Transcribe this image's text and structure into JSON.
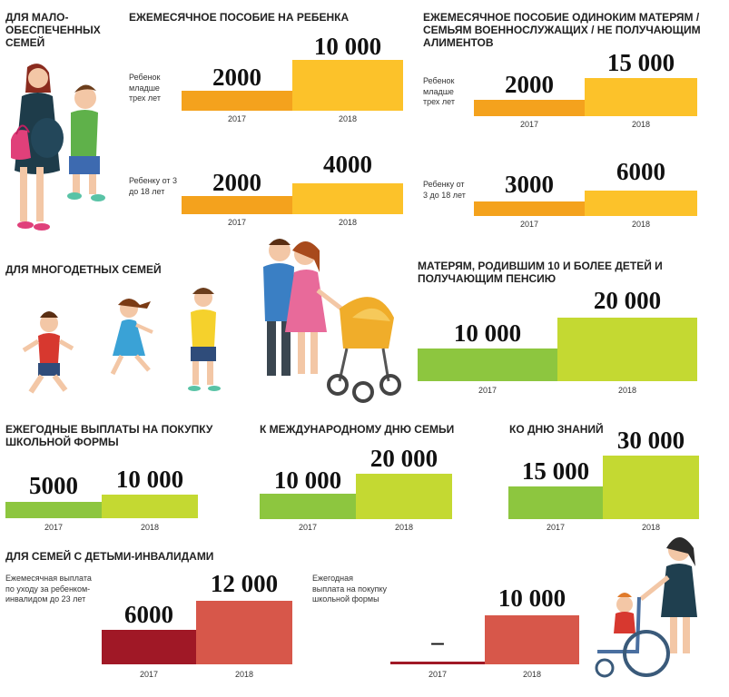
{
  "sections": {
    "low_income": {
      "title": "ДЛЯ МАЛО-ОБЕСПЕЧЕННЫХ СЕМЕЙ",
      "child_benefit": {
        "title": "ЕЖЕМЕСЯЧНОЕ ПОСОБИЕ НА РЕБЕНКА",
        "row1": {
          "label": "Ребенок младше трех лет",
          "v2017": "2000",
          "v2018": "10 000"
        },
        "row2": {
          "label": "Ребенку от 3 до 18 лет",
          "v2017": "2000",
          "v2018": "4000"
        }
      },
      "single_mothers": {
        "title": "ЕЖЕМЕСЯЧНОЕ ПОСОБИЕ ОДИНОКИМ МАТЕРЯМ / СЕМЬЯМ ВОЕННОСЛУЖАЩИХ / НЕ ПОЛУЧАЮЩИМ АЛИМЕНТОВ",
        "row1": {
          "label": "Ребенок младше трех лет",
          "v2017": "2000",
          "v2018": "15 000"
        },
        "row2": {
          "label": "Ребенку от 3 до 18 лет",
          "v2017": "3000",
          "v2018": "6000"
        }
      }
    },
    "large_families": {
      "title": "ДЛЯ МНОГОДЕТНЫХ СЕМЕЙ",
      "mothers10": {
        "title": "МАТЕРЯМ, РОДИВШИМ 10 И БОЛЕЕ ДЕТЕЙ И ПОЛУЧАЮЩИМ ПЕНСИЮ",
        "v2017": "10 000",
        "v2018": "20 000"
      },
      "school_uniform": {
        "title": "ЕЖЕГОДНЫЕ ВЫПЛАТЫ НА ПОКУПКУ ШКОЛЬНОЙ ФОРМЫ",
        "v2017": "5000",
        "v2018": "10 000"
      },
      "family_day": {
        "title": "К МЕЖДУНАРОДНОМУ ДНЮ СЕМЬИ",
        "v2017": "10 000",
        "v2018": "20 000"
      },
      "knowledge_day": {
        "title": "КО ДНЮ ЗНАНИЙ",
        "v2017": "15 000",
        "v2018": "30 000"
      }
    },
    "disabled": {
      "title": "ДЛЯ СЕМЕЙ С ДЕТЬМИ-ИНВАЛИДАМИ",
      "care": {
        "label": "Ежемесячная выплата по уходу за ребенком-инвалидом до 23 лет",
        "v2017": "6000",
        "v2018": "12 000"
      },
      "uniform": {
        "label": "Ежегодная выплата на покупку школьной формы",
        "v2017": "–",
        "v2018": "10 000"
      }
    }
  },
  "years": {
    "y2017": "2017",
    "y2018": "2018"
  },
  "colors": {
    "orange_dark": "#f4a21d",
    "orange_light": "#fcc22a",
    "green_dark": "#8dc63f",
    "green_light": "#c4d932",
    "red_dark": "#a01826",
    "red_light": "#d7574a"
  },
  "chart_data": [
    {
      "type": "bar",
      "title": "ЕЖЕМЕСЯЧНОЕ ПОСОБИЕ НА РЕБЕНКА",
      "categories": [
        "2017",
        "2018"
      ],
      "series": [
        {
          "name": "Ребенок младше трех лет",
          "values": [
            2000,
            10000
          ]
        },
        {
          "name": "Ребенку от 3 до 18 лет",
          "values": [
            2000,
            4000
          ]
        }
      ]
    },
    {
      "type": "bar",
      "title": "ЕЖЕМЕСЯЧНОЕ ПОСОБИЕ ОДИНОКИМ МАТЕРЯМ / СЕМЬЯМ ВОЕННОСЛУЖАЩИХ / НЕ ПОЛУЧАЮЩИМ АЛИМЕНТОВ",
      "categories": [
        "2017",
        "2018"
      ],
      "series": [
        {
          "name": "Ребенок младше трех лет",
          "values": [
            2000,
            15000
          ]
        },
        {
          "name": "Ребенку от 3 до 18 лет",
          "values": [
            3000,
            6000
          ]
        }
      ]
    },
    {
      "type": "bar",
      "title": "МАТЕРЯМ, РОДИВШИМ 10 И БОЛЕЕ ДЕТЕЙ И ПОЛУЧАЮЩИМ ПЕНСИЮ",
      "categories": [
        "2017",
        "2018"
      ],
      "values": [
        10000,
        20000
      ]
    },
    {
      "type": "bar",
      "title": "ЕЖЕГОДНЫЕ ВЫПЛАТЫ НА ПОКУПКУ ШКОЛЬНОЙ ФОРМЫ",
      "categories": [
        "2017",
        "2018"
      ],
      "values": [
        5000,
        10000
      ]
    },
    {
      "type": "bar",
      "title": "К МЕЖДУНАРОДНОМУ ДНЮ СЕМЬИ",
      "categories": [
        "2017",
        "2018"
      ],
      "values": [
        10000,
        20000
      ]
    },
    {
      "type": "bar",
      "title": "КО ДНЮ ЗНАНИЙ",
      "categories": [
        "2017",
        "2018"
      ],
      "values": [
        15000,
        30000
      ]
    },
    {
      "type": "bar",
      "title": "ДЛЯ СЕМЕЙ С ДЕТЬМИ-ИНВАЛИДАМИ",
      "categories": [
        "2017",
        "2018"
      ],
      "series": [
        {
          "name": "Ежемесячная выплата по уходу за ребенком-инвалидом до 23 лет",
          "values": [
            6000,
            12000
          ]
        },
        {
          "name": "Ежегодная выплата на покупку школьной формы",
          "values": [
            0,
            10000
          ]
        }
      ]
    }
  ]
}
